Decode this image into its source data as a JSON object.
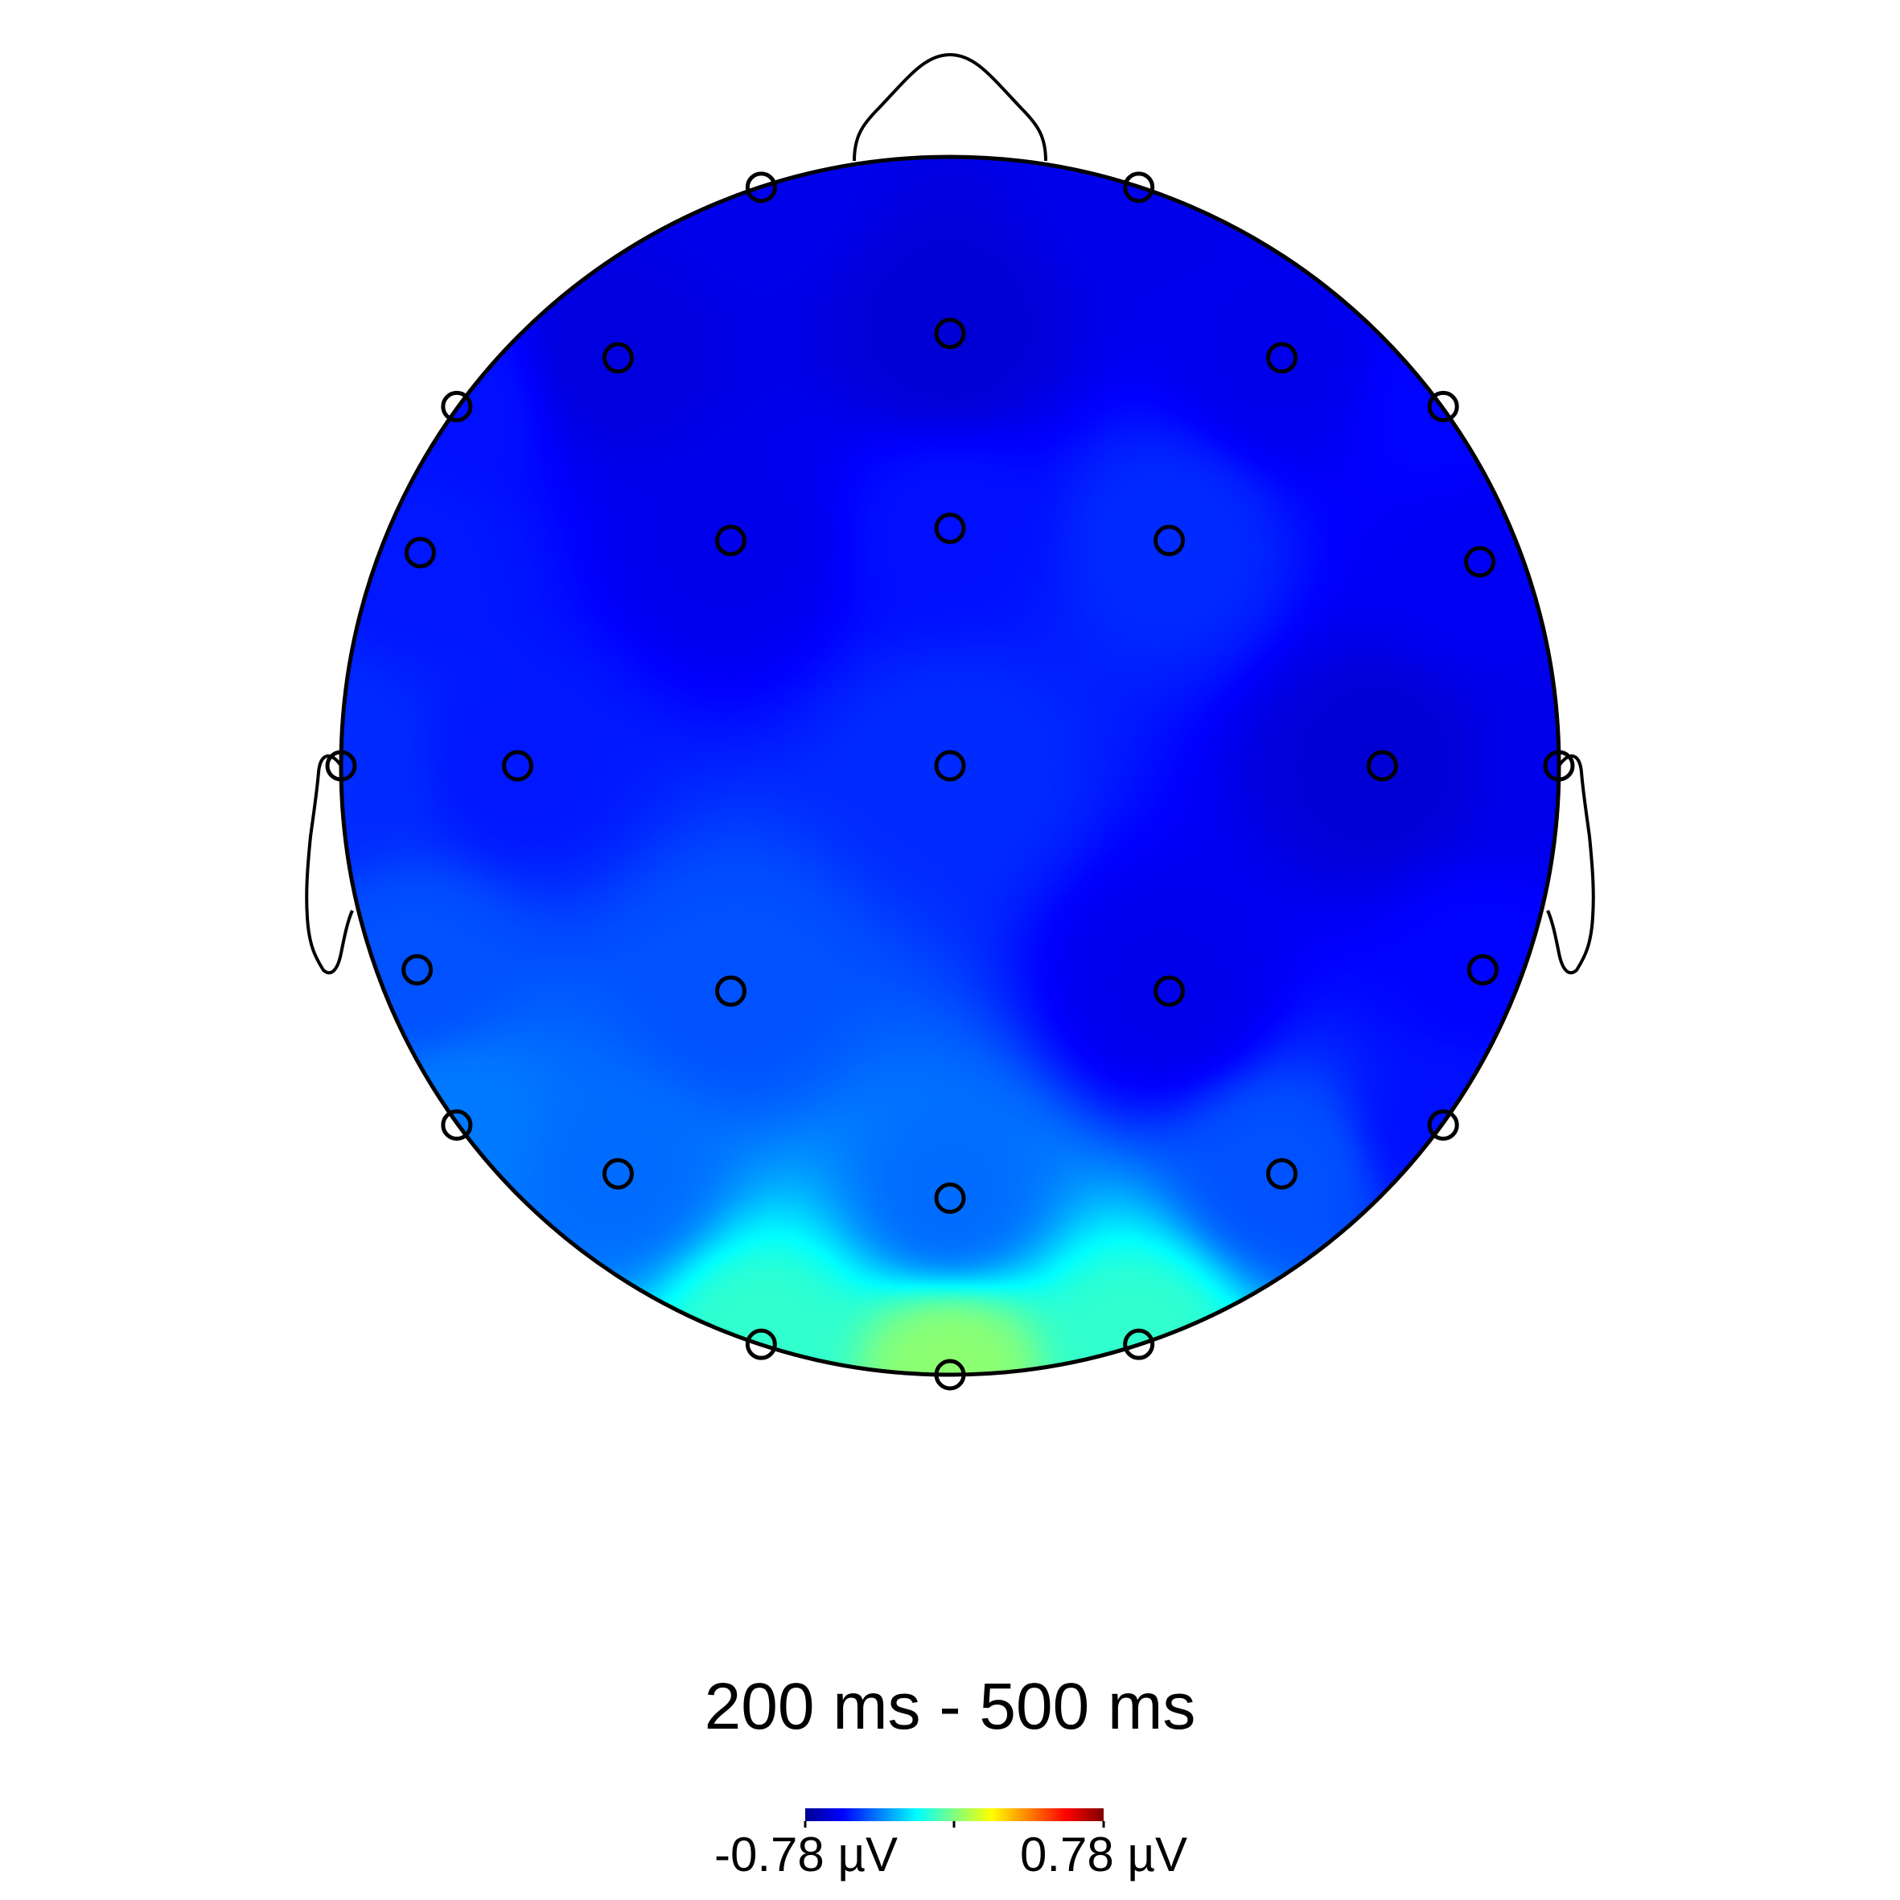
{
  "chart_data": {
    "type": "heatmap",
    "title": "200 ms - 500 ms",
    "colorbar": {
      "min": -0.78,
      "max": 0.78,
      "min_label": "-0.78 µV",
      "max_label": "0.78 µV",
      "colormap": "jet",
      "colors": [
        "#00008f",
        "#0000ff",
        "#0080ff",
        "#00ffff",
        "#80ff80",
        "#ffff00",
        "#ff8000",
        "#ff0000",
        "#800000"
      ]
    },
    "electrodes": [
      {
        "x": -0.31,
        "y": 0.95,
        "v": -0.62
      },
      {
        "x": 0.31,
        "y": 0.95,
        "v": -0.62
      },
      {
        "x": 0.0,
        "y": 0.71,
        "v": -0.66
      },
      {
        "x": -0.545,
        "y": 0.67,
        "v": -0.64
      },
      {
        "x": 0.545,
        "y": 0.67,
        "v": -0.62
      },
      {
        "x": -0.81,
        "y": 0.59,
        "v": -0.56
      },
      {
        "x": 0.81,
        "y": 0.59,
        "v": -0.58
      },
      {
        "x": -0.36,
        "y": 0.37,
        "v": -0.62
      },
      {
        "x": 0.0,
        "y": 0.39,
        "v": -0.56
      },
      {
        "x": 0.36,
        "y": 0.37,
        "v": -0.52
      },
      {
        "x": -0.87,
        "y": 0.35,
        "v": -0.55
      },
      {
        "x": 0.87,
        "y": 0.335,
        "v": -0.6
      },
      {
        "x": -1.0,
        "y": 0.0,
        "v": -0.52
      },
      {
        "x": -0.71,
        "y": 0.0,
        "v": -0.55
      },
      {
        "x": 0.0,
        "y": 0.0,
        "v": -0.52
      },
      {
        "x": 0.71,
        "y": 0.0,
        "v": -0.66
      },
      {
        "x": 1.0,
        "y": 0.0,
        "v": -0.62
      },
      {
        "x": -0.875,
        "y": -0.335,
        "v": -0.46
      },
      {
        "x": -0.36,
        "y": -0.37,
        "v": -0.46
      },
      {
        "x": 0.36,
        "y": -0.37,
        "v": -0.62
      },
      {
        "x": 0.875,
        "y": -0.335,
        "v": -0.58
      },
      {
        "x": -0.81,
        "y": -0.59,
        "v": -0.4
      },
      {
        "x": 0.81,
        "y": -0.59,
        "v": -0.56
      },
      {
        "x": -0.545,
        "y": -0.67,
        "v": -0.42
      },
      {
        "x": 0.0,
        "y": -0.71,
        "v": -0.42
      },
      {
        "x": 0.545,
        "y": -0.67,
        "v": -0.46
      },
      {
        "x": -0.31,
        "y": -0.95,
        "v": -0.12
      },
      {
        "x": 0.0,
        "y": -1.0,
        "v": 0.02
      },
      {
        "x": 0.31,
        "y": -0.95,
        "v": -0.12
      }
    ]
  }
}
